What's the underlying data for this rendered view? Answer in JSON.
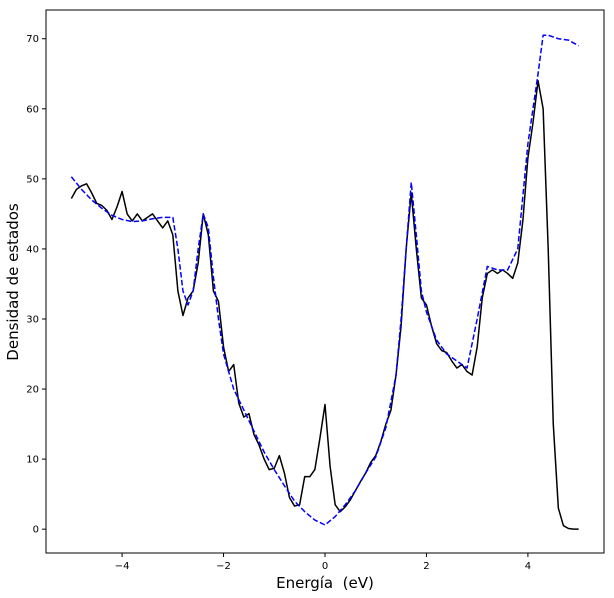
{
  "chart_data": {
    "type": "line",
    "xlabel": "Energía  (eV)",
    "ylabel": "Densidad de estados",
    "xlim": [
      -5.5,
      5.5
    ],
    "ylim": [
      -3.4,
      74.1
    ],
    "xticks": [
      {
        "value": -4,
        "label": "−4"
      },
      {
        "value": -2,
        "label": "−2"
      },
      0,
      2,
      4
    ],
    "yticks": [
      0,
      10,
      20,
      30,
      40,
      50,
      60,
      70
    ],
    "grid": false,
    "series": [
      {
        "color": "#000000",
        "dash": false,
        "x": [
          -5.0,
          -4.9,
          -4.8,
          -4.7,
          -4.6,
          -4.5,
          -4.4,
          -4.3,
          -4.2,
          -4.1,
          -4.0,
          -3.9,
          -3.8,
          -3.7,
          -3.6,
          -3.5,
          -3.4,
          -3.3,
          -3.2,
          -3.1,
          -3.0,
          -2.9,
          -2.8,
          -2.7,
          -2.6,
          -2.5,
          -2.4,
          -2.3,
          -2.2,
          -2.1,
          -2.0,
          -1.9,
          -1.8,
          -1.7,
          -1.6,
          -1.5,
          -1.4,
          -1.3,
          -1.2,
          -1.1,
          -1.0,
          -0.9,
          -0.8,
          -0.7,
          -0.6,
          -0.5,
          -0.4,
          -0.3,
          -0.2,
          -0.1,
          0.0,
          0.1,
          0.2,
          0.3,
          0.4,
          0.5,
          0.6,
          0.7,
          0.8,
          0.9,
          1.0,
          1.1,
          1.2,
          1.3,
          1.4,
          1.5,
          1.6,
          1.7,
          1.8,
          1.9,
          2.0,
          2.1,
          2.2,
          2.3,
          2.4,
          2.5,
          2.6,
          2.7,
          2.8,
          2.9,
          3.0,
          3.1,
          3.2,
          3.3,
          3.4,
          3.5,
          3.6,
          3.7,
          3.8,
          3.9,
          4.0,
          4.1,
          4.2,
          4.3,
          4.4,
          4.5,
          4.6,
          4.7,
          4.8,
          4.9,
          5.0
        ],
        "values": [
          47.2,
          48.5,
          49,
          49.3,
          48,
          46.5,
          46.2,
          45.5,
          44.2,
          46,
          48.2,
          45,
          44,
          45,
          44,
          44.5,
          45,
          44,
          43,
          44,
          42,
          34,
          30.5,
          33,
          34,
          38,
          45,
          42,
          34,
          32.5,
          26,
          22.5,
          23.5,
          18,
          16,
          16.5,
          13.5,
          12,
          10,
          8.5,
          8.7,
          10.5,
          8,
          4.5,
          3.3,
          3.5,
          7.5,
          7.5,
          8.5,
          13,
          17.8,
          9,
          3.5,
          2.5,
          3.2,
          4.2,
          5.5,
          6.8,
          8,
          9.5,
          10.5,
          12.5,
          15,
          17,
          22,
          29,
          40,
          48,
          40,
          33,
          32,
          29,
          26.5,
          25.5,
          25.2,
          24,
          23,
          23.5,
          22.5,
          22,
          26,
          33,
          36.5,
          37,
          36.5,
          37,
          36.5,
          35.8,
          38,
          44,
          53,
          58,
          64,
          60,
          40,
          15,
          3,
          0.5,
          0.1,
          0,
          0
        ]
      },
      {
        "color": "#0000ff",
        "dash": true,
        "x": [
          -5.0,
          -4.8,
          -4.6,
          -4.4,
          -4.2,
          -4.0,
          -3.8,
          -3.6,
          -3.4,
          -3.2,
          -3.0,
          -2.9,
          -2.8,
          -2.7,
          -2.6,
          -2.5,
          -2.4,
          -2.3,
          -2.2,
          -2.1,
          -2.0,
          -1.8,
          -1.6,
          -1.4,
          -1.2,
          -1.0,
          -0.8,
          -0.6,
          -0.4,
          -0.2,
          0.0,
          0.2,
          0.4,
          0.6,
          0.8,
          1.0,
          1.2,
          1.4,
          1.5,
          1.6,
          1.7,
          1.8,
          1.9,
          2.0,
          2.2,
          2.4,
          2.6,
          2.8,
          3.0,
          3.2,
          3.4,
          3.6,
          3.8,
          4.0,
          4.2,
          4.3,
          4.4,
          4.6,
          4.8,
          5.0
        ],
        "values": [
          50.3,
          48.5,
          47,
          45.8,
          44.8,
          44.2,
          43.9,
          44,
          44.3,
          44.5,
          44.5,
          40,
          34,
          32,
          34,
          40,
          45,
          43,
          36,
          30,
          25,
          20,
          17,
          14,
          11,
          8.5,
          6.2,
          4,
          2.5,
          1.3,
          0.6,
          1.8,
          3.5,
          5.5,
          8,
          10.3,
          14.5,
          22,
          30,
          40,
          49.5,
          42,
          34,
          31,
          27,
          25,
          24,
          23,
          30,
          37.5,
          37,
          37,
          40,
          55,
          65,
          70.5,
          70.5,
          70,
          69.8,
          69
        ]
      }
    ]
  }
}
